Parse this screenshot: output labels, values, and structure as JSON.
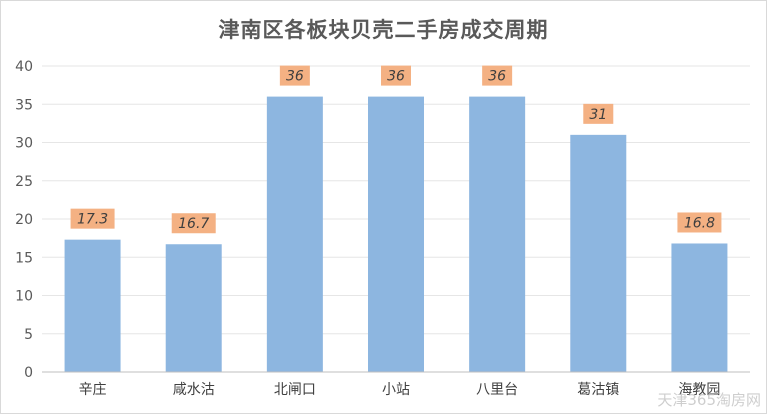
{
  "chart_data": {
    "type": "bar",
    "title": "津南区各板块贝壳二手房成交周期",
    "categories": [
      "辛庄",
      "咸水沽",
      "北闸口",
      "小站",
      "八里台",
      "葛沽镇",
      "海教园"
    ],
    "values": [
      17.3,
      16.7,
      36,
      36,
      36,
      31,
      16.8
    ],
    "value_labels": [
      "17.3",
      "16.7",
      "36",
      "36",
      "36",
      "31",
      "16.8"
    ],
    "y_ticks": [
      "0",
      "5",
      "10",
      "15",
      "20",
      "25",
      "30",
      "35",
      "40"
    ],
    "ylim": [
      0,
      40
    ],
    "xlabel": "",
    "ylabel": "",
    "grid": true,
    "bar_color": "#8db6e0",
    "label_bg_color": "#f4b183"
  },
  "watermark": "天津365淘房网"
}
